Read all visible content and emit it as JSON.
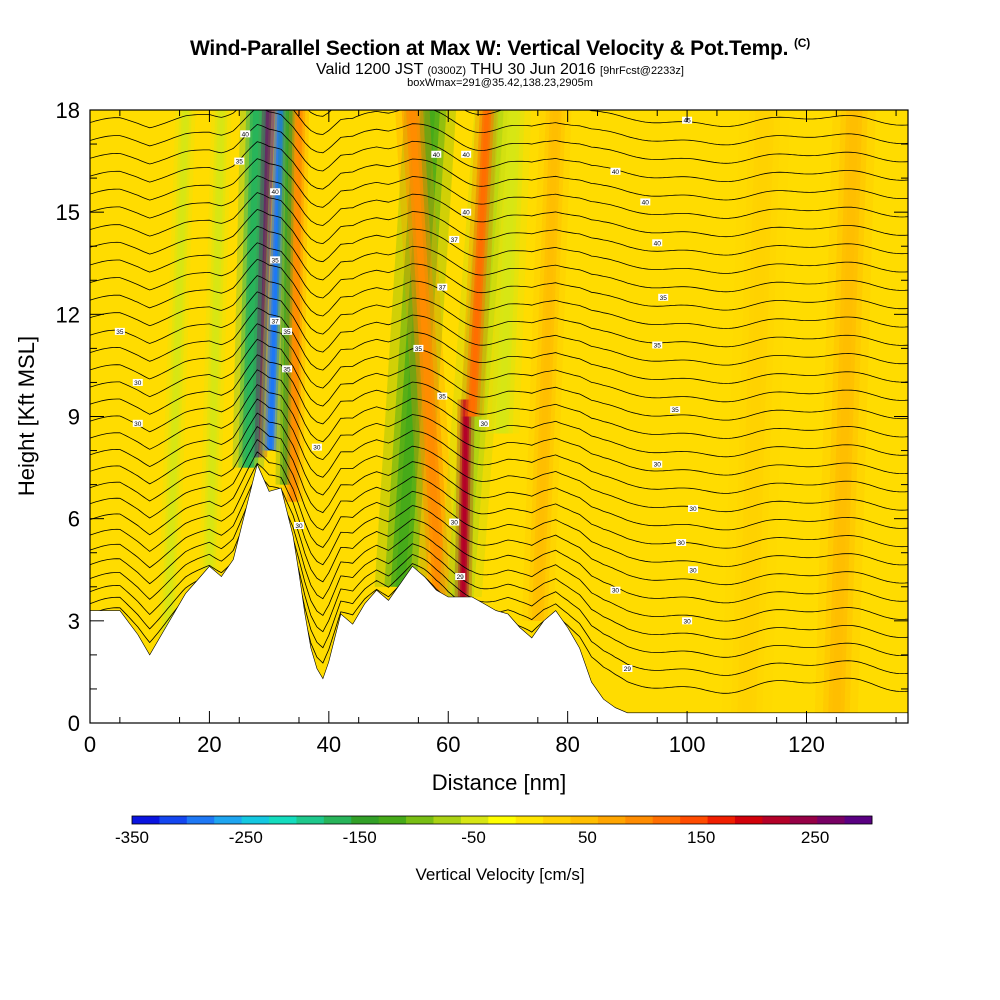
{
  "header": {
    "title": "Wind-Parallel Section at Max W: Vertical Velocity & Pot.Temp.",
    "copyright": "(C)",
    "valid_prefix": "Valid 1200 JST",
    "valid_z": "(0300Z)",
    "valid_suffix": "THU 30 Jun 2016",
    "forecast": "[9hrFcst@2233z]",
    "box_info": "boxWmax=291@35.42,138.23,2905m"
  },
  "chart_data": {
    "type": "heatmap",
    "xlabel": "Distance [nm]",
    "ylabel": "Height [Kft MSL]",
    "xlim": [
      0,
      137
    ],
    "ylim": [
      0,
      18
    ],
    "x_ticks": [
      0,
      20,
      40,
      60,
      80,
      100,
      120
    ],
    "y_ticks": [
      0,
      3,
      6,
      9,
      12,
      15,
      18
    ],
    "colorbar": {
      "title": "Vertical Velocity [cm/s]",
      "min": -350,
      "max": 300,
      "tick_values": [
        -350,
        -250,
        -150,
        -50,
        50,
        150,
        250
      ],
      "tick_labels": [
        "-350",
        "-250",
        "-150",
        "-50",
        "50",
        "150",
        "250"
      ],
      "colors": [
        "#0a14e0",
        "#1446f0",
        "#1e78f5",
        "#1ea5f0",
        "#14c8e1",
        "#14dcbe",
        "#1ec88c",
        "#28b45a",
        "#32a028",
        "#46aa19",
        "#78be14",
        "#aad214",
        "#d7e614",
        "#ffff00",
        "#ffe600",
        "#ffd200",
        "#ffbe00",
        "#ffa500",
        "#ff8c00",
        "#ff6e00",
        "#ff4b00",
        "#f01e00",
        "#d2000a",
        "#b40028",
        "#960046",
        "#780064",
        "#5a0082"
      ]
    },
    "terrain_kft": [
      [
        0,
        3.3
      ],
      [
        5,
        3.3
      ],
      [
        8,
        2.6
      ],
      [
        10,
        2
      ],
      [
        12,
        2.6
      ],
      [
        14,
        3.2
      ],
      [
        16,
        3.8
      ],
      [
        18,
        4.2
      ],
      [
        20,
        4.6
      ],
      [
        22,
        4.3
      ],
      [
        24,
        4.8
      ],
      [
        26,
        6.2
      ],
      [
        28,
        7.6
      ],
      [
        30,
        6.8
      ],
      [
        32,
        6.9
      ],
      [
        34,
        5.5
      ],
      [
        35,
        4.4
      ],
      [
        36,
        3.2
      ],
      [
        37,
        2.2
      ],
      [
        38,
        1.6
      ],
      [
        39,
        1.3
      ],
      [
        40,
        1.8
      ],
      [
        42,
        3.2
      ],
      [
        44,
        2.9
      ],
      [
        46,
        3.5
      ],
      [
        48,
        3.9
      ],
      [
        50,
        3.6
      ],
      [
        52,
        4.1
      ],
      [
        54,
        4.6
      ],
      [
        56,
        4.3
      ],
      [
        58,
        3.9
      ],
      [
        60,
        3.7
      ],
      [
        62,
        3.7
      ],
      [
        64,
        3.7
      ],
      [
        66,
        3.5
      ],
      [
        68,
        3.3
      ],
      [
        70,
        3.2
      ],
      [
        72,
        2.8
      ],
      [
        74,
        2.5
      ],
      [
        76,
        3
      ],
      [
        78,
        3.3
      ],
      [
        80,
        2.8
      ],
      [
        82,
        2.2
      ],
      [
        84,
        1.2
      ],
      [
        86,
        0.7
      ],
      [
        88,
        0.45
      ],
      [
        90,
        0.3
      ],
      [
        137,
        0.3
      ]
    ],
    "bands": [
      {
        "bottom": [
          27.5,
          7.8
        ],
        "top": [
          29.6,
          18
        ],
        "width": 1.8,
        "value": 270
      },
      {
        "bottom": [
          30.2,
          8.0
        ],
        "top": [
          32.0,
          18
        ],
        "width": 1.3,
        "value": -300
      },
      {
        "bottom": [
          26.5,
          7.5
        ],
        "top": [
          27.8,
          18
        ],
        "width": 2.2,
        "value": -170
      },
      {
        "bottom": [
          33.0,
          7.0
        ],
        "top": [
          33.5,
          18
        ],
        "width": 1.6,
        "value": -140
      },
      {
        "bottom": [
          34.0,
          6.5
        ],
        "top": [
          35.0,
          18
        ],
        "width": 1.4,
        "value": 90
      },
      {
        "bottom": [
          52.0,
          4.0
        ],
        "top": [
          57.0,
          18
        ],
        "width": 3.6,
        "value": -120
      },
      {
        "bottom": [
          58.5,
          3.7
        ],
        "top": [
          54.0,
          18
        ],
        "width": 2.4,
        "value": 90
      },
      {
        "bottom": [
          62.0,
          3.7
        ],
        "top": [
          68.0,
          18
        ],
        "width": 3.0,
        "value": -80
      },
      {
        "bottom": [
          62.5,
          3.7
        ],
        "top": [
          63.0,
          9.5
        ],
        "width": 1.2,
        "value": 220
      },
      {
        "bottom": [
          64.0,
          9.0
        ],
        "top": [
          66.5,
          18
        ],
        "width": 1.6,
        "value": 120
      },
      {
        "bottom": [
          69.0,
          8.5
        ],
        "top": [
          71.0,
          18
        ],
        "width": 2.4,
        "value": -60
      },
      {
        "bottom": [
          13.0,
          2.5
        ],
        "top": [
          16.0,
          18
        ],
        "width": 1.4,
        "value": -40
      },
      {
        "bottom": [
          20.0,
          4.5
        ],
        "top": [
          22.0,
          18
        ],
        "width": 1.4,
        "value": -40
      },
      {
        "bottom": [
          75.0,
          3.0
        ],
        "top": [
          78.0,
          18
        ],
        "width": 2.2,
        "value": 40
      },
      {
        "bottom": [
          110.0,
          0.3
        ],
        "top": [
          113.0,
          18
        ],
        "width": 3.5,
        "value": 30
      },
      {
        "bottom": [
          125.0,
          0.3
        ],
        "top": [
          128.0,
          18
        ],
        "width": 3.0,
        "value": 40
      }
    ],
    "isentropes": {
      "count": 34,
      "base_height_kft": 0.9,
      "spacing_kft": 0.54
    },
    "contour_labels": [
      {
        "x": 5,
        "y": 11.5,
        "text": "35"
      },
      {
        "x": 8,
        "y": 10.0,
        "text": "30"
      },
      {
        "x": 8,
        "y": 8.8,
        "text": "30"
      },
      {
        "x": 26,
        "y": 17.3,
        "text": "40"
      },
      {
        "x": 25,
        "y": 16.5,
        "text": "35"
      },
      {
        "x": 31,
        "y": 15.6,
        "text": "40"
      },
      {
        "x": 31,
        "y": 13.6,
        "text": "35"
      },
      {
        "x": 31,
        "y": 11.8,
        "text": "37"
      },
      {
        "x": 33,
        "y": 11.5,
        "text": "35"
      },
      {
        "x": 33,
        "y": 10.4,
        "text": "35"
      },
      {
        "x": 38,
        "y": 8.1,
        "text": "30"
      },
      {
        "x": 35,
        "y": 5.8,
        "text": "30"
      },
      {
        "x": 58,
        "y": 16.7,
        "text": "40"
      },
      {
        "x": 63,
        "y": 16.7,
        "text": "40"
      },
      {
        "x": 63,
        "y": 15.0,
        "text": "40"
      },
      {
        "x": 61,
        "y": 14.2,
        "text": "37"
      },
      {
        "x": 59,
        "y": 12.8,
        "text": "37"
      },
      {
        "x": 55,
        "y": 11.0,
        "text": "35"
      },
      {
        "x": 59,
        "y": 9.6,
        "text": "35"
      },
      {
        "x": 66,
        "y": 8.8,
        "text": "30"
      },
      {
        "x": 61,
        "y": 5.9,
        "text": "30"
      },
      {
        "x": 62,
        "y": 4.3,
        "text": "29"
      },
      {
        "x": 100,
        "y": 17.7,
        "text": "45"
      },
      {
        "x": 88,
        "y": 16.2,
        "text": "40"
      },
      {
        "x": 93,
        "y": 15.3,
        "text": "40"
      },
      {
        "x": 95,
        "y": 14.1,
        "text": "40"
      },
      {
        "x": 96,
        "y": 12.5,
        "text": "35"
      },
      {
        "x": 95,
        "y": 11.1,
        "text": "35"
      },
      {
        "x": 98,
        "y": 9.2,
        "text": "35"
      },
      {
        "x": 95,
        "y": 7.6,
        "text": "30"
      },
      {
        "x": 101,
        "y": 6.3,
        "text": "30"
      },
      {
        "x": 99,
        "y": 5.3,
        "text": "30"
      },
      {
        "x": 101,
        "y": 4.5,
        "text": "30"
      },
      {
        "x": 88,
        "y": 3.9,
        "text": "30"
      },
      {
        "x": 100,
        "y": 3.0,
        "text": "30"
      },
      {
        "x": 90,
        "y": 1.6,
        "text": "29"
      }
    ]
  }
}
